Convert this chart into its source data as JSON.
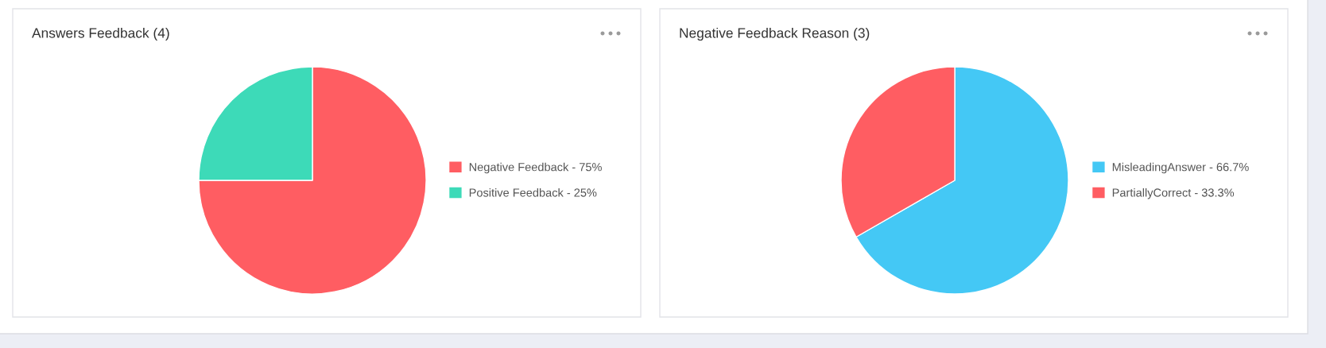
{
  "chart_data": [
    {
      "type": "pie",
      "title": "Answers Feedback (4)",
      "categories": [
        "Negative Feedback",
        "Positive Feedback"
      ],
      "values": [
        75,
        25
      ],
      "value_labels": [
        "75%",
        "25%"
      ],
      "colors": [
        "#ff5d62",
        "#3ddab8"
      ],
      "legend": "right"
    },
    {
      "type": "pie",
      "title": "Negative Feedback Reason (3)",
      "categories": [
        "MisleadingAnswer",
        "PartiallyCorrect"
      ],
      "values": [
        66.7,
        33.3
      ],
      "value_labels": [
        "66.7%",
        "33.3%"
      ],
      "colors": [
        "#44c8f5",
        "#ff5d62"
      ],
      "legend": "right"
    }
  ]
}
